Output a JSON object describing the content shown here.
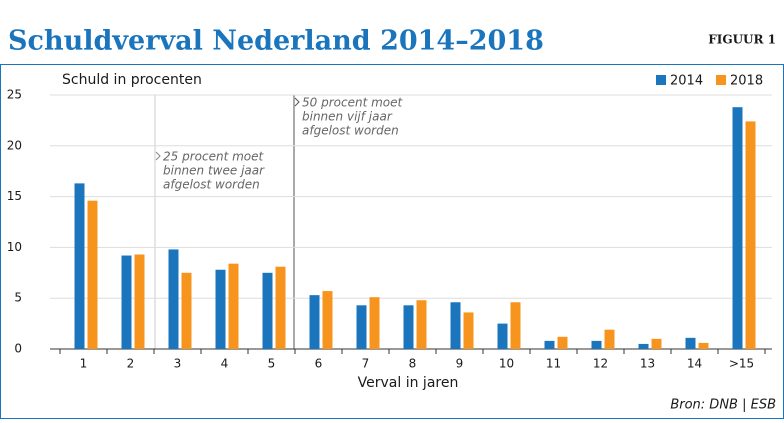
{
  "chart_data": {
    "type": "bar",
    "title": "Schuldverval Nederland 2014–2018",
    "figure_label": "FIGUUR 1",
    "y_label": "Schuld in procenten",
    "x_label": "Verval in jaren",
    "source": "Bron: DNB | ESB",
    "categories": [
      "1",
      "2",
      "3",
      "4",
      "5",
      "6",
      "7",
      "8",
      "9",
      "10",
      "11",
      "12",
      "13",
      "14",
      ">15"
    ],
    "series": [
      {
        "name": "2014",
        "color": "#1b75bc",
        "values": [
          16.3,
          9.2,
          9.8,
          7.8,
          7.5,
          5.3,
          4.3,
          4.3,
          4.6,
          2.5,
          0.8,
          0.8,
          0.5,
          1.1,
          23.8
        ]
      },
      {
        "name": "2018",
        "color": "#f7941d",
        "values": [
          14.6,
          9.3,
          7.5,
          8.4,
          8.1,
          5.7,
          5.1,
          4.8,
          3.6,
          4.6,
          1.2,
          1.9,
          1.0,
          0.6,
          22.4
        ]
      }
    ],
    "ylim": [
      0,
      25
    ],
    "yticks": [
      0,
      5,
      10,
      15,
      20,
      25
    ],
    "grid": true,
    "legend": "top-right",
    "annotations": [
      {
        "lines": [
          "25 procent moet",
          "binnen twee jaar",
          "afgelost worden"
        ]
      },
      {
        "lines": [
          "50 procent moet",
          "binnen vijf jaar",
          "afgelost worden"
        ]
      }
    ]
  }
}
